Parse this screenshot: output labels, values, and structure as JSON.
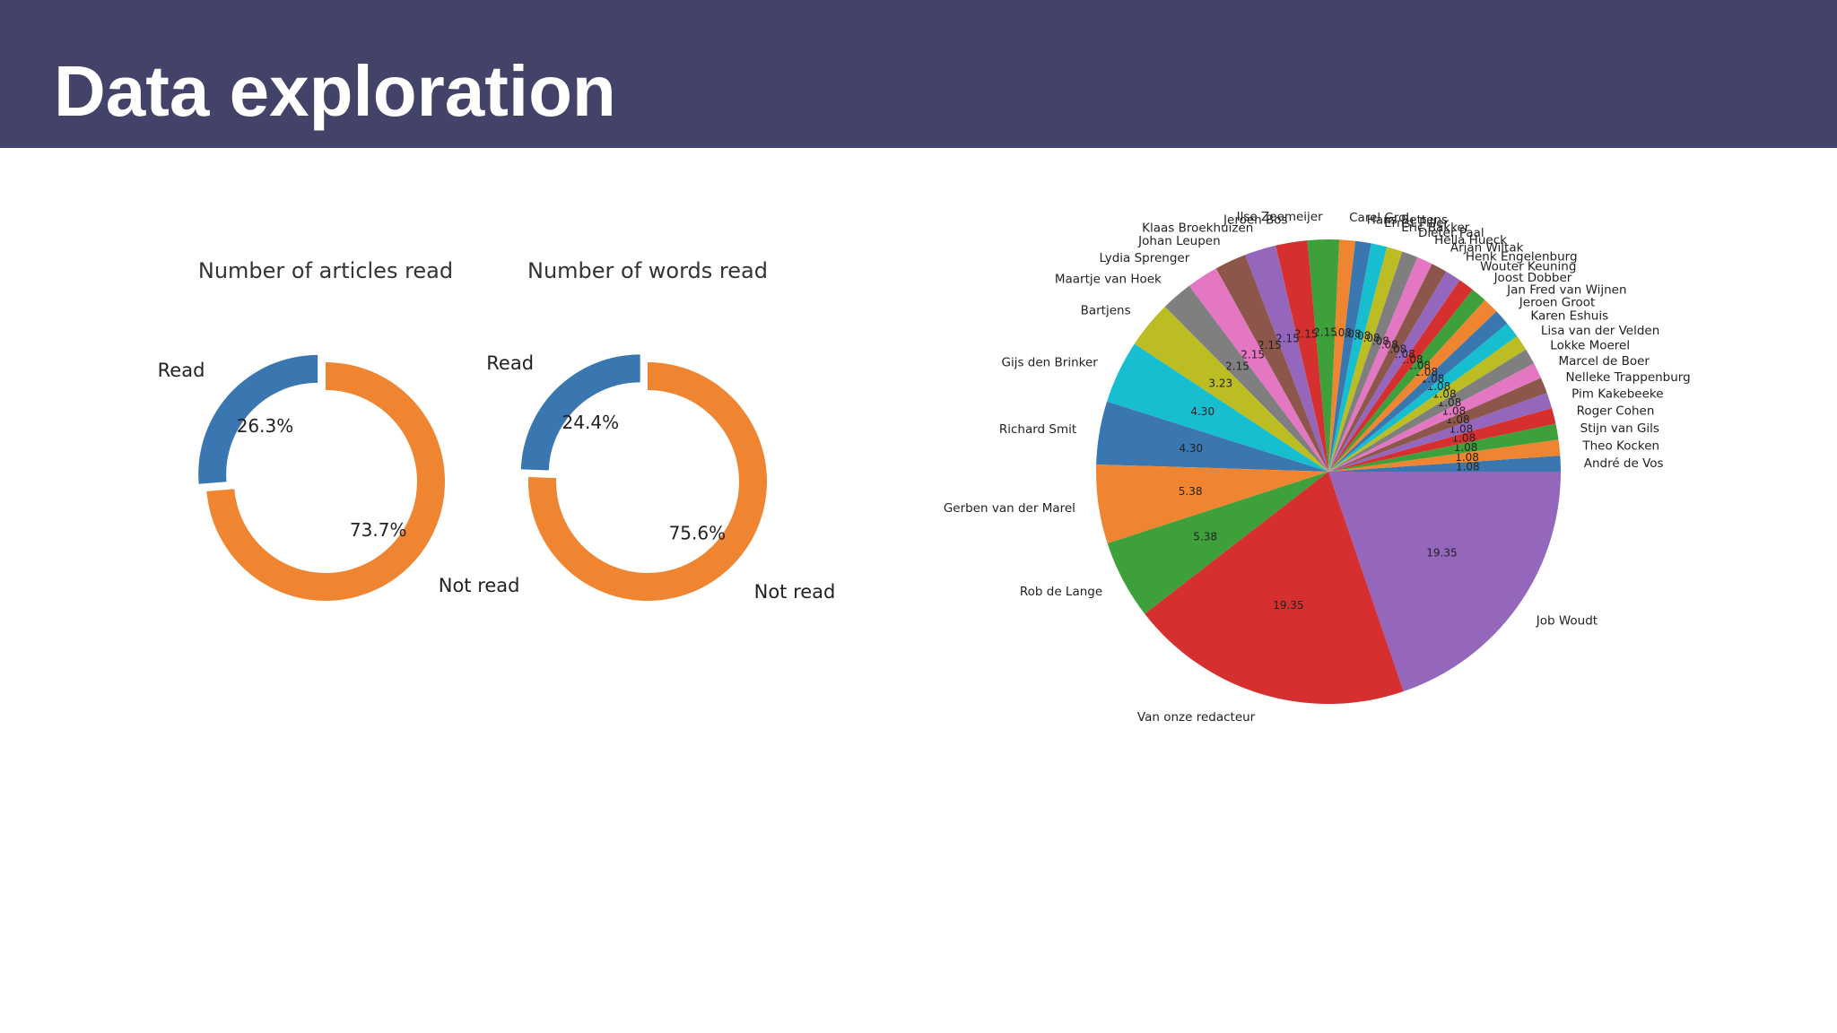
{
  "header": {
    "title": "Data exploration"
  },
  "colors": {
    "header_bg": "#434268",
    "blue": "#3a77b0",
    "orange": "#ef8530"
  },
  "chart_data": [
    {
      "type": "pie",
      "title": "Number of articles read",
      "donut": true,
      "slices": [
        {
          "label": "Read",
          "value": 26.3,
          "pct_label": "26.3%",
          "color": "#3a77b0",
          "explode": true
        },
        {
          "label": "Not read",
          "value": 73.7,
          "pct_label": "73.7%",
          "color": "#ef8530",
          "explode": false
        }
      ]
    },
    {
      "type": "pie",
      "title": "Number of words read",
      "donut": true,
      "slices": [
        {
          "label": "Read",
          "value": 24.4,
          "pct_label": "24.4%",
          "color": "#3a77b0",
          "explode": true
        },
        {
          "label": "Not read",
          "value": 75.6,
          "pct_label": "75.6%",
          "color": "#ef8530",
          "explode": false
        }
      ]
    },
    {
      "type": "pie",
      "title": "",
      "donut": false,
      "slices": [
        {
          "label": "André de Vos",
          "value": 1.08,
          "value_label": "1.08",
          "color": "#3a77b0"
        },
        {
          "label": "Theo Kocken",
          "value": 1.08,
          "value_label": "1.08",
          "color": "#ef8530"
        },
        {
          "label": "Stijn van Gils",
          "value": 1.08,
          "value_label": "1.08",
          "color": "#3ea03a"
        },
        {
          "label": "Roger Cohen",
          "value": 1.08,
          "value_label": "1.08",
          "color": "#d62f2f"
        },
        {
          "label": "Pim Kakebeeke",
          "value": 1.08,
          "value_label": "1.08",
          "color": "#9467bd"
        },
        {
          "label": "Nelleke Trappenburg",
          "value": 1.08,
          "value_label": "1.08",
          "color": "#8c564b"
        },
        {
          "label": "Marcel de Boer",
          "value": 1.08,
          "value_label": "1.08",
          "color": "#e377c2"
        },
        {
          "label": "Lokke Moerel",
          "value": 1.08,
          "value_label": "1.08",
          "color": "#7f7f7f"
        },
        {
          "label": "Lisa van der Velden",
          "value": 1.08,
          "value_label": "1.08",
          "color": "#bcbd22"
        },
        {
          "label": "Karen Eshuis",
          "value": 1.08,
          "value_label": "1.08",
          "color": "#17becf"
        },
        {
          "label": "Jeroen Groot",
          "value": 1.08,
          "value_label": "1.08",
          "color": "#3a77b0"
        },
        {
          "label": "Jan Fred van Wijnen",
          "value": 1.08,
          "value_label": "1.08",
          "color": "#ef8530"
        },
        {
          "label": "Joost Dobber",
          "value": 1.08,
          "value_label": "1.08",
          "color": "#3ea03a"
        },
        {
          "label": "Wouter Keuning",
          "value": 1.08,
          "value_label": "1.08",
          "color": "#d62f2f"
        },
        {
          "label": "Henk Engelenburg",
          "value": 1.08,
          "value_label": "1.08",
          "color": "#9467bd"
        },
        {
          "label": "Arjan Wiltak",
          "value": 1.08,
          "value_label": "1.08",
          "color": "#8c564b"
        },
        {
          "label": "Hella Hueck",
          "value": 1.08,
          "value_label": "1.08",
          "color": "#e377c2"
        },
        {
          "label": "Dieter Paal",
          "value": 1.08,
          "value_label": "1.08",
          "color": "#7f7f7f"
        },
        {
          "label": "Eric Bakker",
          "value": 1.08,
          "value_label": "1.08",
          "color": "#bcbd22"
        },
        {
          "label": "Ernst Piller",
          "value": 1.08,
          "value_label": "1.08",
          "color": "#17becf"
        },
        {
          "label": "Hans Bettens",
          "value": 1.08,
          "value_label": "1.08",
          "color": "#3a77b0"
        },
        {
          "label": "Carel Grol",
          "value": 1.08,
          "value_label": "1.08",
          "color": "#ef8530"
        },
        {
          "label": "Ilse Zeemeijer",
          "value": 2.15,
          "value_label": "2.15",
          "color": "#3ea03a"
        },
        {
          "label": "Jeroen Bos",
          "value": 2.15,
          "value_label": "2.15",
          "color": "#d62f2f"
        },
        {
          "label": "Klaas Broekhuizen",
          "value": 2.15,
          "value_label": "2.15",
          "color": "#9467bd"
        },
        {
          "label": "Johan Leupen",
          "value": 2.15,
          "value_label": "2.15",
          "color": "#8c564b"
        },
        {
          "label": "Lydia Sprenger",
          "value": 2.15,
          "value_label": "2.15",
          "color": "#e377c2"
        },
        {
          "label": "Maartje van Hoek",
          "value": 2.15,
          "value_label": "2.15",
          "color": "#7f7f7f"
        },
        {
          "label": "Bartjens",
          "value": 3.23,
          "value_label": "3.23",
          "color": "#bcbd22"
        },
        {
          "label": "Gijs den Brinker",
          "value": 4.3,
          "value_label": "4.30",
          "color": "#17becf"
        },
        {
          "label": "Richard Smit",
          "value": 4.3,
          "value_label": "4.30",
          "color": "#3a77b0"
        },
        {
          "label": "Gerben van der Marel",
          "value": 5.38,
          "value_label": "5.38",
          "color": "#ef8530"
        },
        {
          "label": "Rob de Lange",
          "value": 5.38,
          "value_label": "5.38",
          "color": "#3ea03a"
        },
        {
          "label": "Van onze redacteur",
          "value": 19.35,
          "value_label": "19.35",
          "color": "#d62f2f"
        },
        {
          "label": "Job Woudt",
          "value": 19.35,
          "value_label": "19.35",
          "color": "#9467bd"
        }
      ]
    }
  ]
}
